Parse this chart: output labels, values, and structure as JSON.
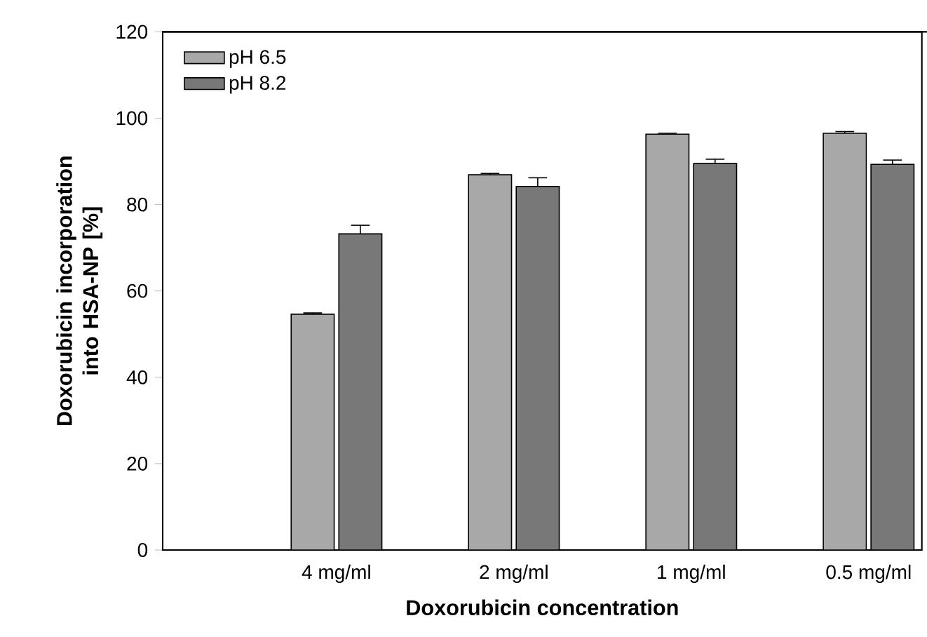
{
  "chart_data": {
    "type": "bar",
    "xlabel": "Doxorubicin concentration",
    "ylabel": "Doxorubicin incorporation into HSA-NP [%]",
    "categories": [
      "4 mg/ml",
      "2 mg/ml",
      "1 mg/ml",
      "0.5 mg/ml"
    ],
    "series": [
      {
        "name": "pH 6.5",
        "color": "#a8a8a8",
        "values": [
          54.6,
          86.9,
          96.3,
          96.5
        ],
        "errors": [
          0.3,
          0.3,
          0.2,
          0.4
        ]
      },
      {
        "name": "pH 8.2",
        "color": "#787878",
        "values": [
          73.2,
          84.2,
          89.5,
          89.3
        ],
        "errors": [
          2,
          2,
          1,
          1
        ]
      }
    ],
    "ylim": [
      0,
      120
    ],
    "yticks": [
      0,
      20,
      40,
      60,
      80,
      100,
      120
    ],
    "grid": false,
    "legend": "top left"
  }
}
